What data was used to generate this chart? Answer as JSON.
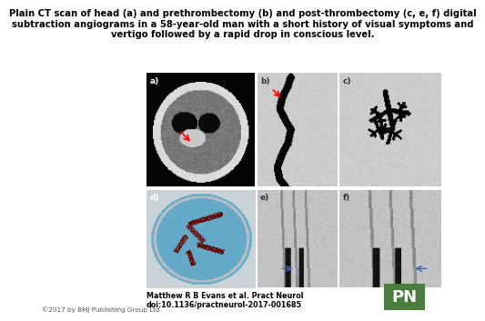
{
  "title_line1": "Plain CT scan of head (a) and prethrombectomy (b) and post-thrombectomy (c, e, f) digital",
  "title_line2": "subtraction angiograms in a 58-year-old man with a short history of visual symptoms and",
  "title_line3": "vertigo followed by a rapid drop in conscious level.",
  "title_fontsize": 7.2,
  "author_text": "Matthew R B Evans et al. Pract Neurol\ndoi:10.1136/practneurol-2017-001685",
  "author_fontsize": 5.8,
  "copyright_text": "©2017 by BMJ Publishing Group Ltd",
  "copyright_fontsize": 5.2,
  "pn_bg_color": "#4a7c3f",
  "pn_text": "PN",
  "pn_text_color": "#ffffff",
  "pn_fontsize": 13,
  "bg_color": "#ffffff",
  "panel_label_color_light": "#ffffff",
  "panel_label_color_dark": "#333333",
  "panel_label_fontsize": 6.5,
  "angio_bg": 210,
  "angio_vessel_dark": 20,
  "ct_bg": 40,
  "dish_blue": [
    100,
    170,
    200
  ]
}
